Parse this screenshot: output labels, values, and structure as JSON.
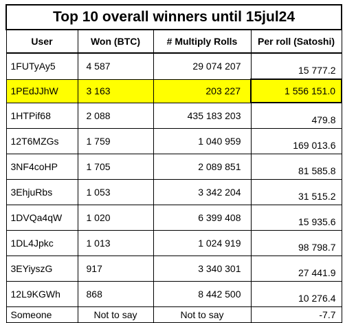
{
  "title": "Top 10 overall winners until 15jul24",
  "columns": [
    "User",
    "Won (BTC)",
    "# Multiply Rolls",
    "Per roll (Satoshi)"
  ],
  "highlight_color": "#ffff00",
  "rows": [
    {
      "user": "1FUTyAy5",
      "won": "4 587",
      "rolls": "29 074 207",
      "per_roll": "15 777.2",
      "highlight": false
    },
    {
      "user": "1PEdJJhW",
      "won": "3 163",
      "rolls": "203 227",
      "per_roll": "1 556 151.0",
      "highlight": true
    },
    {
      "user": "1HTPif68",
      "won": "2 088",
      "rolls": "435 183 203",
      "per_roll": "479.8",
      "highlight": false
    },
    {
      "user": "12T6MZGs",
      "won": "1 759",
      "rolls": "1 040 959",
      "per_roll": "169 013.6",
      "highlight": false
    },
    {
      "user": "3NF4coHP",
      "won": "1 705",
      "rolls": "2 089 851",
      "per_roll": "81 585.8",
      "highlight": false
    },
    {
      "user": "3EhjuRbs",
      "won": "1 053",
      "rolls": "3 342 204",
      "per_roll": "31 515.2",
      "highlight": false
    },
    {
      "user": "1DVQa4qW",
      "won": "1 020",
      "rolls": "6 399 408",
      "per_roll": "15 935.6",
      "highlight": false
    },
    {
      "user": "1DL4Jpkc",
      "won": "1 013",
      "rolls": "1 024 919",
      "per_roll": "98 798.7",
      "highlight": false
    },
    {
      "user": "3EYiyszG",
      "won": "917",
      "rolls": "3 340 301",
      "per_roll": "27 441.9",
      "highlight": false
    },
    {
      "user": "12L9KGWh",
      "won": "868",
      "rolls": "8 442 500",
      "per_roll": "10 276.4",
      "highlight": false
    },
    {
      "user": "Someone",
      "won": "Not to say",
      "rolls": "Not to say",
      "per_roll": "-7.7",
      "highlight": false
    }
  ]
}
